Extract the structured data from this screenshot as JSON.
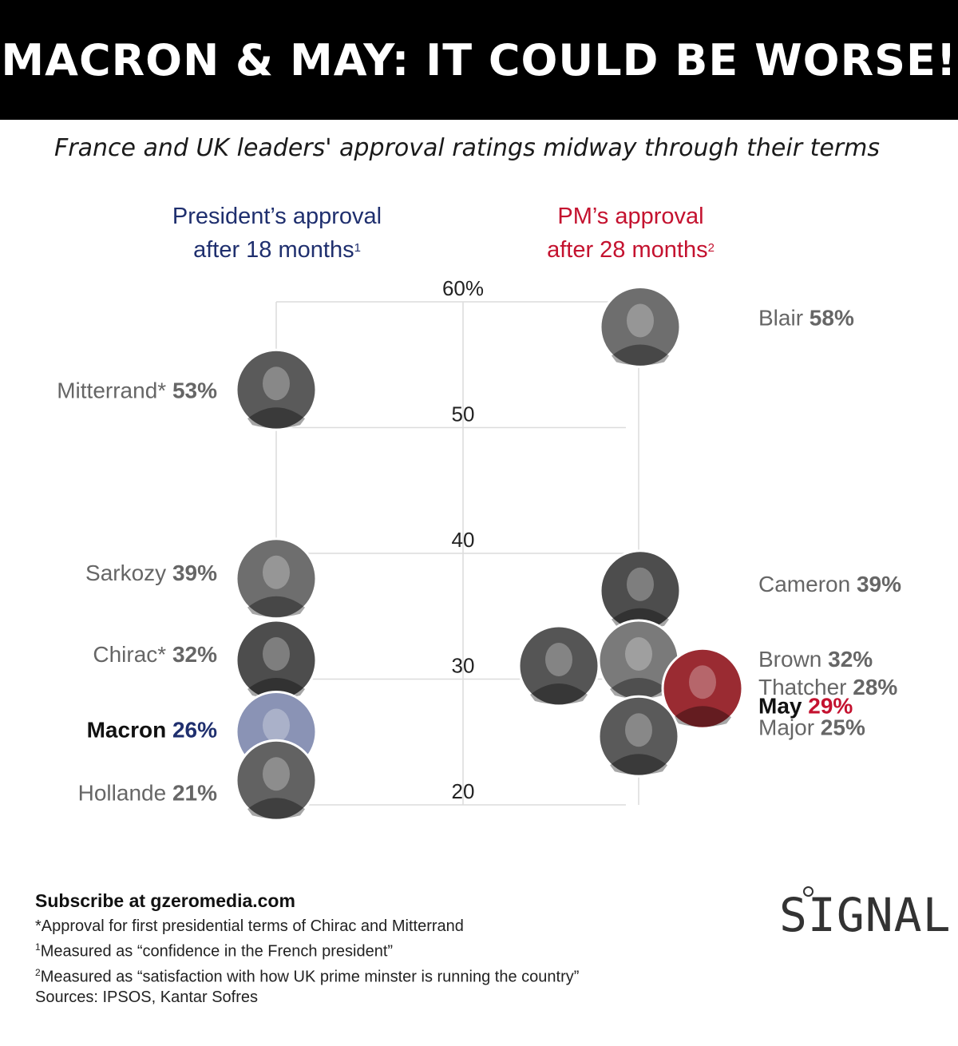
{
  "header": {
    "title": "MACRON & MAY: IT COULD BE WORSE!"
  },
  "subtitle": "France and UK leaders' approval ratings midway through their terms",
  "columns": {
    "france": {
      "line1": "President’s approval",
      "line2": "after 18 months",
      "note_mark": "1"
    },
    "uk": {
      "line1": "PM’s approval",
      "line2": "after 28 months",
      "note_mark": "2"
    }
  },
  "chart_data": {
    "type": "scatter",
    "title": "France and UK leaders' approval ratings midway through their terms",
    "ylim": [
      20,
      60
    ],
    "y_ticks": [
      {
        "value": 60,
        "label": "60%"
      },
      {
        "value": 50,
        "label": "50"
      },
      {
        "value": 40,
        "label": "40"
      },
      {
        "value": 30,
        "label": "30"
      },
      {
        "value": 20,
        "label": "20"
      }
    ],
    "series": [
      {
        "name": "President’s approval after 18 months",
        "color": "#1f2f6e",
        "points": [
          {
            "leader": "Mitterrand*",
            "value": 53,
            "label": "53%",
            "highlight": false
          },
          {
            "leader": "Sarkozy",
            "value": 39,
            "label": "39%",
            "highlight": false
          },
          {
            "leader": "Chirac*",
            "value": 32,
            "label": "32%",
            "highlight": false
          },
          {
            "leader": "Macron",
            "value": 26,
            "label": "26%",
            "highlight": true
          },
          {
            "leader": "Hollande",
            "value": 21,
            "label": "21%",
            "highlight": false
          }
        ]
      },
      {
        "name": "PM’s approval after 28 months",
        "color": "#c4122f",
        "points": [
          {
            "leader": "Blair",
            "value": 58,
            "label": "58%",
            "highlight": false
          },
          {
            "leader": "Cameron",
            "value": 39,
            "label": "39%",
            "highlight": false
          },
          {
            "leader": "Brown",
            "value": 32,
            "label": "32%",
            "highlight": false
          },
          {
            "leader": "May",
            "value": 29,
            "label": "29%",
            "highlight": true
          },
          {
            "leader": "Thatcher",
            "value": 28,
            "label": "28%",
            "highlight": false
          },
          {
            "leader": "Major",
            "value": 25,
            "label": "25%",
            "highlight": false
          }
        ]
      }
    ],
    "grid": true,
    "legend": "none"
  },
  "footer": {
    "subscribe": "Subscribe at gzeromedia.com",
    "note_star": "*Approval for first presidential terms of Chirac and Mitterrand",
    "note1_mark": "1",
    "note1": "Measured as “confidence in the French president”",
    "note2_mark": "2",
    "note2": "Measured as “satisfaction with how UK prime minster is running the country”",
    "sources": "Sources: IPSOS, Kantar Sofres"
  },
  "brand": {
    "logo_text": "SIGNAL"
  }
}
